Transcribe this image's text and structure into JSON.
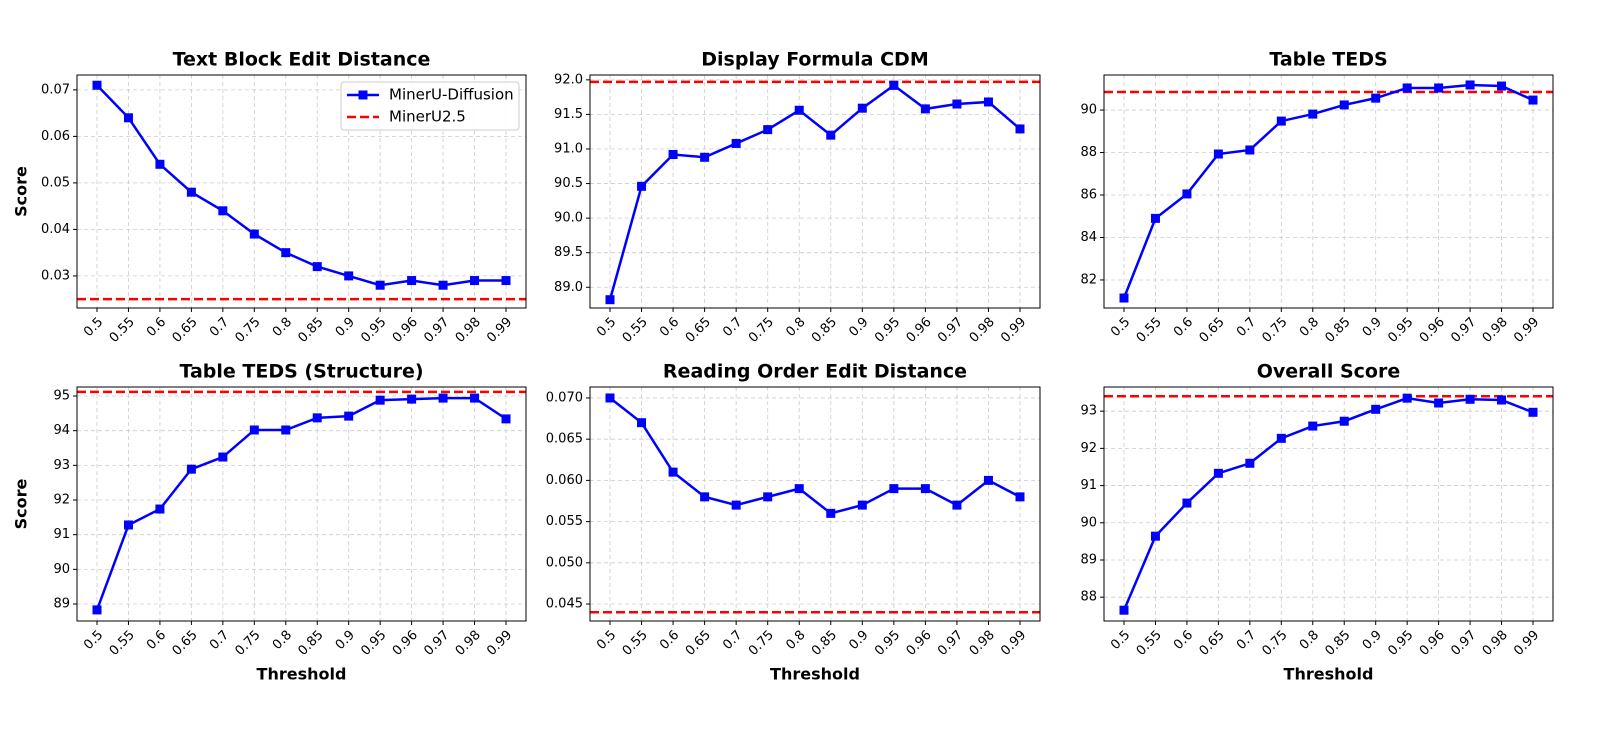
{
  "chart_data": [
    {
      "type": "line",
      "title": "Text Block Edit Distance",
      "ylabel": "Score",
      "categories": [
        "0.5",
        "0.55",
        "0.6",
        "0.65",
        "0.7",
        "0.75",
        "0.8",
        "0.85",
        "0.9",
        "0.95",
        "0.96",
        "0.97",
        "0.98",
        "0.99"
      ],
      "series": [
        {
          "name": "MinerU-Diffusion",
          "color": "#0000ff",
          "values": [
            0.071,
            0.064,
            0.054,
            0.048,
            0.044,
            0.039,
            0.035,
            0.032,
            0.03,
            0.028,
            0.029,
            0.028,
            0.029,
            0.029
          ]
        }
      ],
      "reference_line": {
        "name": "MinerU2.5",
        "color": "#ff0000",
        "value": 0.025
      },
      "legend": "upper right",
      "grid": true,
      "ylim": [
        0.0231,
        0.0732
      ],
      "yticks": [
        0.03,
        0.04,
        0.05,
        0.06,
        0.07
      ]
    },
    {
      "type": "line",
      "title": "Display Formula CDM",
      "categories": [
        "0.5",
        "0.55",
        "0.6",
        "0.65",
        "0.7",
        "0.75",
        "0.8",
        "0.85",
        "0.9",
        "0.95",
        "0.96",
        "0.97",
        "0.98",
        "0.99"
      ],
      "series": [
        {
          "color": "#0000ff",
          "values": [
            88.82,
            90.46,
            90.92,
            90.88,
            91.08,
            91.28,
            91.56,
            91.2,
            91.59,
            91.92,
            91.58,
            91.65,
            91.68,
            91.29
          ]
        }
      ],
      "reference_line": {
        "color": "#ff0000",
        "value": 91.97
      },
      "grid": true,
      "ylim": [
        88.7,
        92.07
      ],
      "yticks": [
        {
          "value": 89,
          "label": "89.0"
        },
        89.5,
        {
          "value": 90,
          "label": "90.0"
        },
        90.5,
        {
          "value": 91,
          "label": "91.0"
        },
        91.5,
        {
          "value": 92,
          "label": "92.0"
        }
      ]
    },
    {
      "type": "line",
      "title": "Table TEDS",
      "categories": [
        "0.5",
        "0.55",
        "0.6",
        "0.65",
        "0.7",
        "0.75",
        "0.8",
        "0.85",
        "0.9",
        "0.95",
        "0.96",
        "0.97",
        "0.98",
        "0.99"
      ],
      "series": [
        {
          "color": "#0000ff",
          "values": [
            81.15,
            84.9,
            86.05,
            87.93,
            88.12,
            89.48,
            89.81,
            90.24,
            90.56,
            91.04,
            91.04,
            91.18,
            91.13,
            90.47
          ]
        }
      ],
      "reference_line": {
        "color": "#ff0000",
        "value": 90.85
      },
      "grid": true,
      "ylim": [
        80.68,
        91.65
      ],
      "yticks": [
        82,
        84,
        86,
        88,
        90
      ]
    },
    {
      "type": "line",
      "title": "Table TEDS (Structure)",
      "ylabel": "Score",
      "xlabel": "Threshold",
      "categories": [
        "0.5",
        "0.55",
        "0.6",
        "0.65",
        "0.7",
        "0.75",
        "0.8",
        "0.85",
        "0.9",
        "0.95",
        "0.96",
        "0.97",
        "0.98",
        "0.99"
      ],
      "series": [
        {
          "color": "#0000ff",
          "values": [
            88.83,
            91.28,
            91.74,
            92.89,
            93.24,
            94.02,
            94.02,
            94.37,
            94.42,
            94.88,
            94.91,
            94.94,
            94.94,
            94.34
          ]
        }
      ],
      "reference_line": {
        "color": "#ff0000",
        "value": 95.12
      },
      "grid": true,
      "ylim": [
        88.51,
        95.26
      ],
      "yticks": [
        89,
        90,
        91,
        92,
        93,
        94,
        95
      ]
    },
    {
      "type": "line",
      "title": "Reading Order Edit Distance",
      "xlabel": "Threshold",
      "categories": [
        "0.5",
        "0.55",
        "0.6",
        "0.65",
        "0.7",
        "0.75",
        "0.8",
        "0.85",
        "0.9",
        "0.95",
        "0.96",
        "0.97",
        "0.98",
        "0.99"
      ],
      "series": [
        {
          "color": "#0000ff",
          "values": [
            0.07,
            0.067,
            0.061,
            0.058,
            0.057,
            0.058,
            0.059,
            0.056,
            0.057,
            0.059,
            0.059,
            0.057,
            0.06,
            0.058
          ]
        }
      ],
      "reference_line": {
        "color": "#ff0000",
        "value": 0.044
      },
      "grid": true,
      "ylim": [
        0.04294,
        0.07133
      ],
      "yticks": [
        0.045,
        {
          "value": 0.05,
          "label": "0.050"
        },
        0.055,
        {
          "value": 0.06,
          "label": "0.060"
        },
        0.065,
        {
          "value": 0.07,
          "label": "0.070"
        }
      ]
    },
    {
      "type": "line",
      "title": "Overall Score",
      "xlabel": "Threshold",
      "categories": [
        "0.5",
        "0.55",
        "0.6",
        "0.65",
        "0.7",
        "0.75",
        "0.8",
        "0.85",
        "0.9",
        "0.95",
        "0.96",
        "0.97",
        "0.98",
        "0.99"
      ],
      "series": [
        {
          "color": "#0000ff",
          "values": [
            87.65,
            89.64,
            90.53,
            91.33,
            91.6,
            92.27,
            92.6,
            92.73,
            93.05,
            93.35,
            93.22,
            93.32,
            93.3,
            92.97
          ]
        }
      ],
      "reference_line": {
        "color": "#ff0000",
        "value": 93.4
      },
      "grid": true,
      "ylim": [
        87.36,
        93.65
      ],
      "yticks": [
        88,
        89,
        90,
        91,
        92,
        93
      ]
    }
  ]
}
